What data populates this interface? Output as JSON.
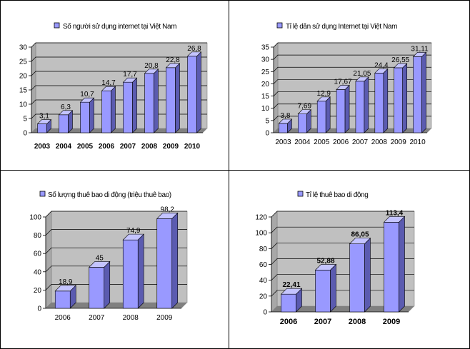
{
  "colors": {
    "bar_front": "#9999ff",
    "bar_side": "#5b5bb0",
    "bar_top": "#c4c4ff",
    "bar_stroke": "#000000",
    "plot_back": "#c0c0c0",
    "plot_floor": "#808080",
    "grid": "#000000",
    "legend_swatch": "#9999ff",
    "panel_border": "#000000"
  },
  "chart_data": [
    {
      "type": "bar",
      "title": "Số người sử dụng internet tại Việt Nam",
      "categories": [
        "2003",
        "2004",
        "2005",
        "2006",
        "2007",
        "2008",
        "2009",
        "2010"
      ],
      "values": [
        3.1,
        6.3,
        10.7,
        14.7,
        17.7,
        20.8,
        22.8,
        26.8
      ],
      "value_labels": [
        "3,1",
        "6,3",
        "10,7",
        "14,7",
        "17,7",
        "20,8",
        "22,8",
        "26,8"
      ],
      "ylim": [
        0,
        30
      ],
      "yticks": [
        "0",
        "5",
        "10",
        "15",
        "20",
        "25",
        "30"
      ],
      "bold_categories": true,
      "bold_values": false,
      "legend": "top"
    },
    {
      "type": "bar",
      "title": "Tỉ lệ dân sử dụng Internet tại Việt Nam",
      "categories": [
        "2003",
        "2004",
        "2005",
        "2006",
        "2007",
        "2008",
        "2009",
        "2010"
      ],
      "values": [
        3.8,
        7.69,
        12.9,
        17.67,
        21.05,
        24.4,
        26.55,
        31.11
      ],
      "value_labels": [
        "3,8",
        "7,69",
        "12,9",
        "17,67",
        "21,05",
        "24,4",
        "26,55",
        "31,11"
      ],
      "ylim": [
        0,
        35
      ],
      "yticks": [
        "0",
        "5",
        "10",
        "15",
        "20",
        "25",
        "30",
        "35"
      ],
      "bold_categories": false,
      "bold_values": false,
      "legend": "top"
    },
    {
      "type": "bar",
      "title": "Số lượng thuê bao di động (triệu thuê bao)",
      "categories": [
        "2006",
        "2007",
        "2008",
        "2009"
      ],
      "values": [
        18.9,
        45,
        74.9,
        98.2
      ],
      "value_labels": [
        "18,9",
        "45",
        "74,9",
        "98,2"
      ],
      "ylim": [
        0,
        100
      ],
      "yticks": [
        "0",
        "20",
        "40",
        "60",
        "80",
        "100"
      ],
      "bold_categories": false,
      "bold_values": false,
      "legend": "top"
    },
    {
      "type": "bar",
      "title": "Tỉ lệ thuê bao di động",
      "categories": [
        "2006",
        "2007",
        "2008",
        "2009"
      ],
      "values": [
        22.41,
        52.88,
        86.05,
        113.4
      ],
      "value_labels": [
        "22,41",
        "52,88",
        "86,05",
        "113,4"
      ],
      "ylim": [
        0,
        120
      ],
      "yticks": [
        "0",
        "20",
        "40",
        "60",
        "80",
        "100",
        "120"
      ],
      "bold_categories": true,
      "bold_values": true,
      "legend": "top"
    }
  ]
}
